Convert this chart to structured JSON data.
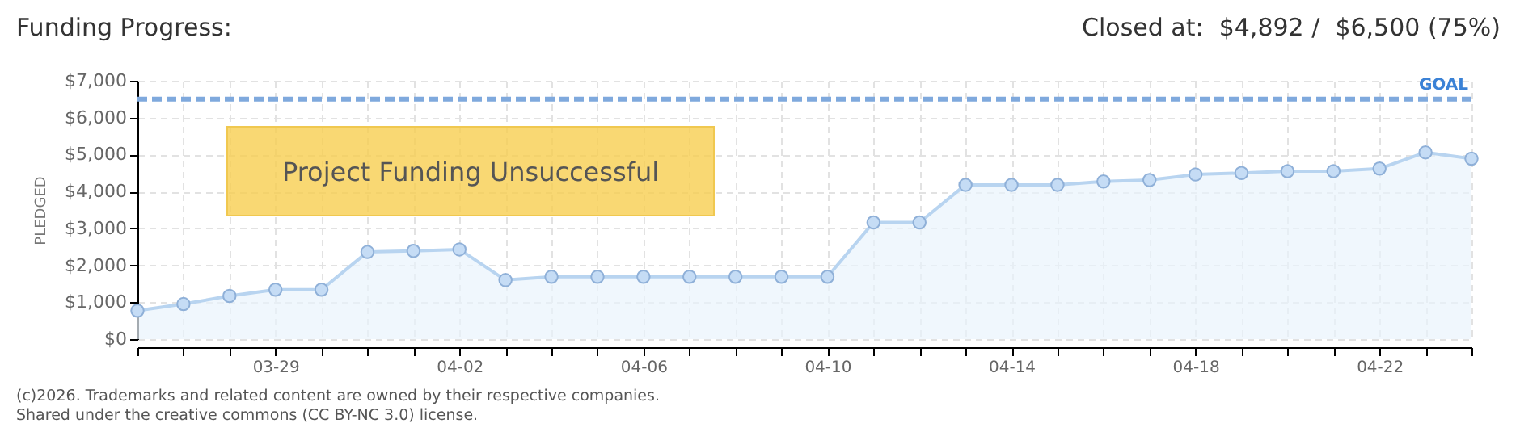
{
  "chart_data": {
    "type": "area",
    "title": "Funding Progress:",
    "subtitle": "Closed at:  $4,892 /  $6,500 (75%)",
    "ylabel": "PLEDGED",
    "annotations": [
      "Project Funding Unsuccessful",
      "(c)2026. Trademarks and related content are owned by their respective companies.",
      "Shared under the creative commons (CC BY-NC 3.0) license."
    ],
    "x": [
      "--03-26",
      "--03-27",
      "--03-28",
      "--03-29",
      "--03-30",
      "--03-31",
      "--04-01",
      "--04-02",
      "--04-03",
      "--04-04",
      "--04-05",
      "--04-06",
      "--04-07",
      "--04-08",
      "--04-09",
      "--04-10",
      "--04-11",
      "--04-12",
      "--04-13",
      "--04-14",
      "--04-15",
      "--04-16",
      "--04-17",
      "--04-18",
      "--04-19",
      "--04-20",
      "--04-21",
      "--04-22",
      "--04-23",
      "--04-24"
    ],
    "series": [
      {
        "color": "#b8d4f0",
        "values": [
          770,
          950,
          1170,
          1340,
          1340,
          2360,
          2390,
          2430,
          1600,
          1690,
          1690,
          1690,
          1690,
          1690,
          1690,
          1690,
          3160,
          3160,
          4180,
          4180,
          4180,
          4270,
          4310,
          4460,
          4500,
          4550,
          4550,
          4620,
          5060,
          4890
        ]
      }
    ],
    "xlim": [
      "--03-26",
      "--04-24"
    ],
    "xticks": [
      {
        "value": "--03-26",
        "label": null
      },
      {
        "value": "--03-27",
        "label": null
      },
      {
        "value": "--03-28",
        "label": null
      },
      {
        "value": "--03-29",
        "label": "03-29"
      },
      {
        "value": "--03-30",
        "label": null
      },
      {
        "value": "--03-31",
        "label": null
      },
      {
        "value": "--04-01",
        "label": null
      },
      {
        "value": "--04-02",
        "label": "04-02"
      },
      {
        "value": "--04-03",
        "label": null
      },
      {
        "value": "--04-04",
        "label": null
      },
      {
        "value": "--04-05",
        "label": null
      },
      {
        "value": "--04-06",
        "label": "04-06"
      },
      {
        "value": "--04-07",
        "label": null
      },
      {
        "value": "--04-08",
        "label": null
      },
      {
        "value": "--04-09",
        "label": null
      },
      {
        "value": "--04-10",
        "label": "04-10"
      },
      {
        "value": "--04-11",
        "label": null
      },
      {
        "value": "--04-12",
        "label": null
      },
      {
        "value": "--04-13",
        "label": null
      },
      {
        "value": "--04-14",
        "label": "04-14"
      },
      {
        "value": "--04-15",
        "label": null
      },
      {
        "value": "--04-16",
        "label": null
      },
      {
        "value": "--04-17",
        "label": null
      },
      {
        "value": "--04-18",
        "label": "04-18"
      },
      {
        "value": "--04-19",
        "label": null
      },
      {
        "value": "--04-20",
        "label": null
      },
      {
        "value": "--04-21",
        "label": null
      },
      {
        "value": "--04-22",
        "label": "04-22"
      },
      {
        "value": "--04-23",
        "label": null
      },
      {
        "value": "--04-24",
        "label": null
      }
    ],
    "ylim": [
      0,
      7000
    ],
    "yticks": [
      {
        "value": 0,
        "label": "$0"
      },
      {
        "value": 1000,
        "label": "$1,000"
      },
      {
        "value": 2000,
        "label": "$2,000"
      },
      {
        "value": 3000,
        "label": "$3,000"
      },
      {
        "value": 4000,
        "label": "$4,000"
      },
      {
        "value": 5000,
        "label": "$5,000"
      },
      {
        "value": 6000,
        "label": "$6,000"
      },
      {
        "value": 7000,
        "label": "$7,000"
      }
    ],
    "ref_lines": [
      {
        "axis": "y",
        "value": 6500,
        "label": "GOAL",
        "color": "#7fa9dd",
        "line_style": "dashed"
      }
    ],
    "grid": true,
    "marker": "circle",
    "line_style": "solid"
  }
}
